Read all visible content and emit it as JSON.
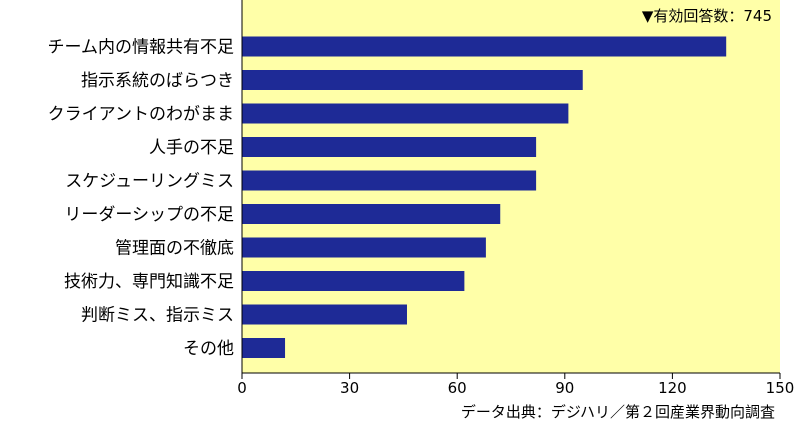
{
  "chart_data": {
    "type": "bar",
    "orientation": "horizontal",
    "categories": [
      "チーム内の情報共有不足",
      "指示系統のばらつき",
      "クライアントのわがまま",
      "人手の不足",
      "スケジューリングミス",
      "リーダーシップの不足",
      "管理面の不徹底",
      "技術力、専門知識不足",
      "判断ミス、指示ミス",
      "その他"
    ],
    "values": [
      135,
      95,
      91,
      82,
      82,
      72,
      68,
      62,
      46,
      12
    ],
    "xlim": [
      0,
      150
    ],
    "xticks": [
      "0",
      "30",
      "60",
      "90",
      "120",
      "150"
    ],
    "annotation": "▼有効回答数：745",
    "source": "データ出典：デジハリ／第２回産業界動向調査",
    "grid": false,
    "legend": "none",
    "colors": {
      "plot_background": "#ffffa8",
      "bar": "#1e2a96",
      "axis": "#000000"
    }
  }
}
